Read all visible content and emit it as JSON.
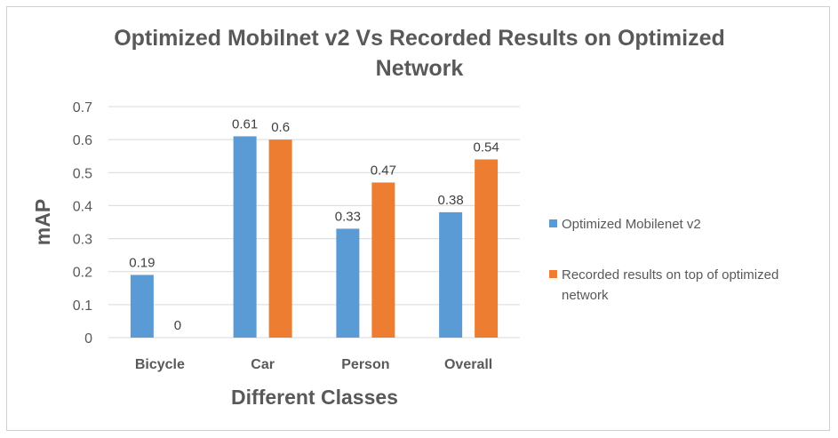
{
  "chart_data": {
    "type": "bar",
    "title_lines": [
      "Optimized Mobilnet v2 Vs Recorded Results on Optimized",
      "Network"
    ],
    "xlabel": "Different Classes",
    "ylabel": "mAP",
    "categories": [
      "Bicycle",
      "Car",
      "Person",
      "Overall"
    ],
    "ylim": [
      0,
      0.7
    ],
    "yticks": [
      "0",
      "0.1",
      "0.2",
      "0.3",
      "0.4",
      "0.5",
      "0.6",
      "0.7"
    ],
    "grid": true,
    "legend_position": "right",
    "series": [
      {
        "name": "Optimized Mobilenet v2",
        "color": "#5b9bd5",
        "values": [
          0.19,
          0.61,
          0.33,
          0.38
        ],
        "labels": [
          "0.19",
          "0.61",
          "0.33",
          "0.38"
        ]
      },
      {
        "name_lines": [
          "Recorded results on top of optimized",
          "network"
        ],
        "color": "#ed7d31",
        "values": [
          0,
          0.6,
          0.47,
          0.54
        ],
        "labels": [
          "0",
          "0.6",
          "0.47",
          "0.54"
        ]
      }
    ]
  }
}
